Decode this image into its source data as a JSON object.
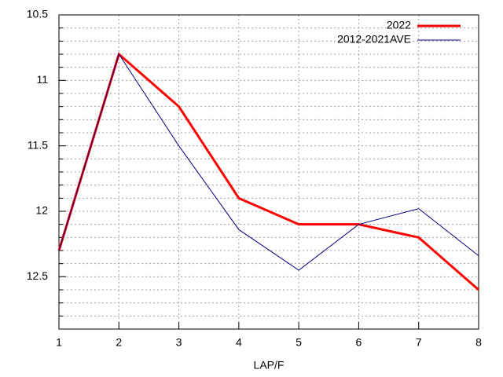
{
  "chart_data": {
    "type": "line",
    "xlabel": "LAP/F",
    "x": [
      1,
      2,
      3,
      4,
      5,
      6,
      7,
      8
    ],
    "series": [
      {
        "name": "2022",
        "color": "#ff0000",
        "values": [
          12.3,
          10.8,
          11.2,
          11.9,
          12.1,
          12.1,
          12.2,
          12.6
        ]
      },
      {
        "name": "2012-2021AVE",
        "color": "#000080",
        "values": [
          12.3,
          10.8,
          11.5,
          12.14,
          12.45,
          12.1,
          11.98,
          12.34
        ]
      }
    ],
    "xlim": [
      1,
      8
    ],
    "xticks": [
      1,
      2,
      3,
      4,
      5,
      6,
      7,
      8
    ],
    "ylim": [
      10.5,
      12.9
    ],
    "y_reversed": true,
    "yticks": [
      10.5,
      11,
      11.5,
      12,
      12.5
    ],
    "yminorticks": [
      10.6,
      10.7,
      10.8,
      10.9,
      11.1,
      11.2,
      11.3,
      11.4,
      11.6,
      11.7,
      11.8,
      11.9,
      12.1,
      12.2,
      12.3,
      12.4,
      12.6,
      12.7,
      12.8
    ],
    "grid": true,
    "legend": "top-right"
  }
}
